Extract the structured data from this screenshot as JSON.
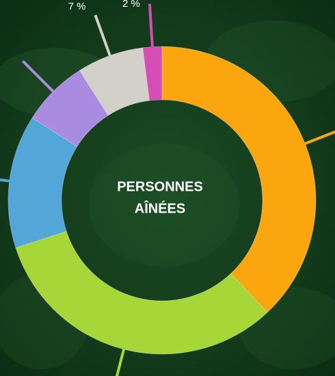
{
  "chart_data": {
    "type": "donut",
    "center_label": [
      "PERSONNES",
      "AÎNÉES"
    ],
    "values": [
      38,
      32,
      14,
      7,
      7,
      2
    ],
    "value_labels": [
      null,
      null,
      null,
      null,
      "7 %",
      "2 %"
    ],
    "colors": [
      "#fca60f",
      "#a6d638",
      "#52a6d8",
      "#a98be0",
      "#d3cfc9",
      "#d64db3"
    ]
  }
}
